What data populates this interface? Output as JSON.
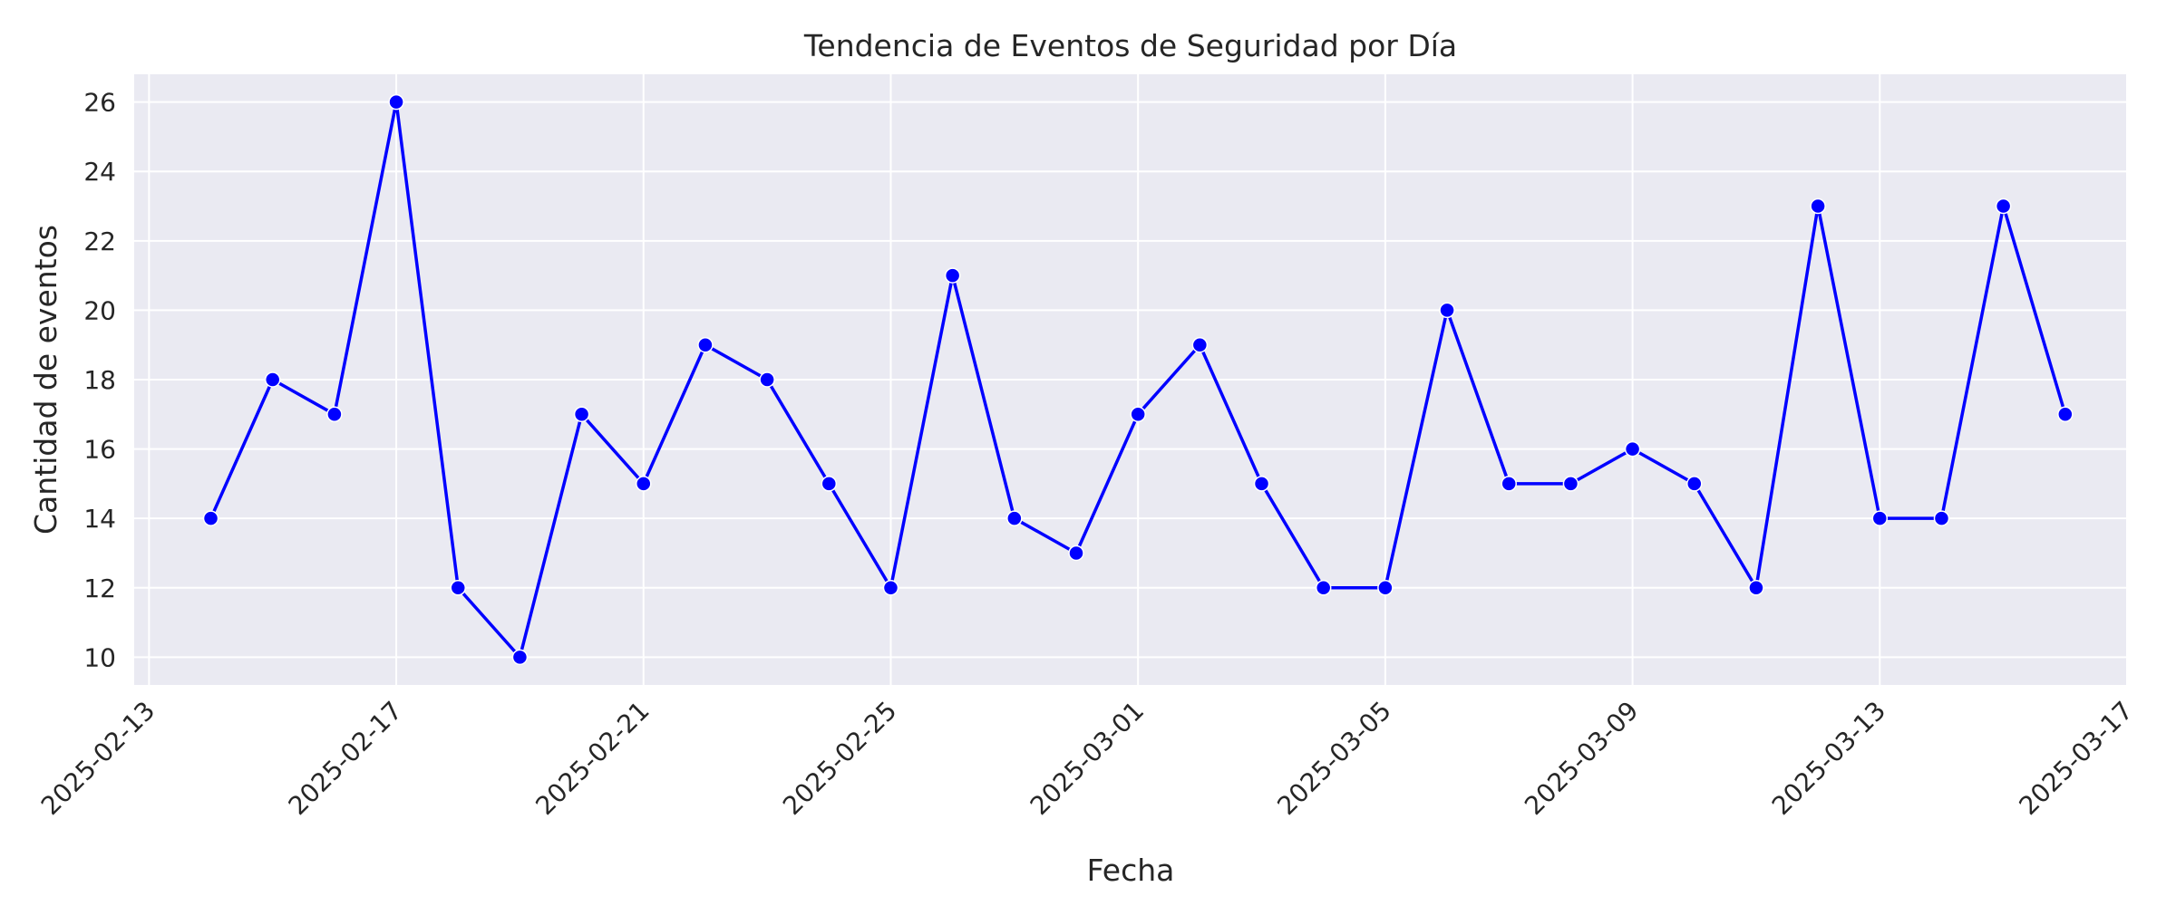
{
  "chart_data": {
    "type": "line",
    "title": "Tendencia de Eventos de Seguridad por Día",
    "xlabel": "Fecha",
    "ylabel": "Cantidad de eventos",
    "x_ticks": [
      "2025-02-13",
      "2025-02-17",
      "2025-02-21",
      "2025-02-25",
      "2025-03-01",
      "2025-03-05",
      "2025-03-09",
      "2025-03-13",
      "2025-03-17"
    ],
    "y_ticks": [
      10,
      12,
      14,
      16,
      18,
      20,
      22,
      24,
      26
    ],
    "xlim": [
      "2025-02-12",
      "2025-03-17"
    ],
    "ylim": [
      9.2,
      26.8
    ],
    "grid": true,
    "series": [
      {
        "color": "#0000ff",
        "x": [
          "2025-02-14",
          "2025-02-15",
          "2025-02-16",
          "2025-02-17",
          "2025-02-18",
          "2025-02-19",
          "2025-02-20",
          "2025-02-21",
          "2025-02-22",
          "2025-02-23",
          "2025-02-24",
          "2025-02-25",
          "2025-02-26",
          "2025-02-27",
          "2025-02-28",
          "2025-03-01",
          "2025-03-02",
          "2025-03-03",
          "2025-03-04",
          "2025-03-05",
          "2025-03-06",
          "2025-03-07",
          "2025-03-08",
          "2025-03-09",
          "2025-03-10",
          "2025-03-11",
          "2025-03-12",
          "2025-03-13",
          "2025-03-14",
          "2025-03-15",
          "2025-03-16"
        ],
        "values": [
          14,
          18,
          17,
          26,
          12,
          10,
          17,
          15,
          19,
          18,
          15,
          12,
          21,
          14,
          13,
          17,
          19,
          15,
          12,
          12,
          20,
          15,
          15,
          16,
          15,
          12,
          23,
          14,
          14,
          23,
          17
        ]
      }
    ],
    "colors": {
      "plot_background": "#eaeaf2",
      "grid": "#ffffff",
      "text": "#262626"
    }
  }
}
